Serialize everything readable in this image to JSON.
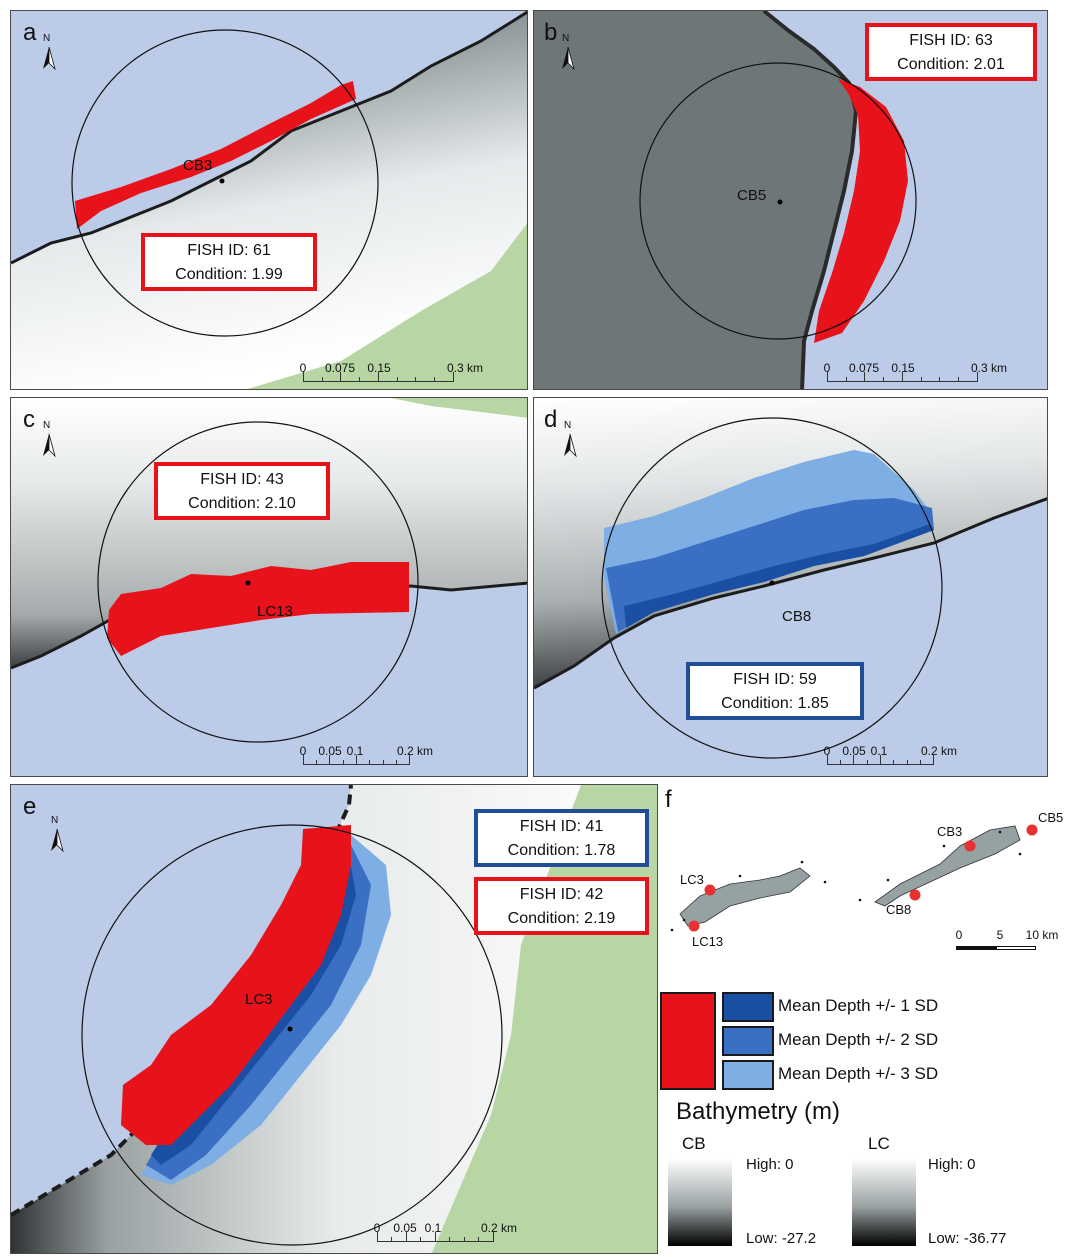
{
  "panels": {
    "a": {
      "letter": "a",
      "north": "N",
      "site": "CB3",
      "box": {
        "fish_id": "FISH ID: 61",
        "condition": "Condition: 1.99",
        "color": "#e8121b"
      },
      "scale": [
        "0",
        "0.075",
        "0.15",
        "0.3 km"
      ]
    },
    "b": {
      "letter": "b",
      "north": "N",
      "site": "CB5",
      "box": {
        "fish_id": "FISH ID: 63",
        "condition": "Condition: 2.01",
        "color": "#e8121b"
      },
      "scale": [
        "0",
        "0.075",
        "0.15",
        "0.3 km"
      ]
    },
    "c": {
      "letter": "c",
      "north": "N",
      "site": "LC13",
      "box": {
        "fish_id": "FISH ID: 43",
        "condition": "Condition: 2.10",
        "color": "#e8121b"
      },
      "scale": [
        "0",
        "0.05",
        "0.1",
        "0.2 km"
      ]
    },
    "d": {
      "letter": "d",
      "north": "N",
      "site": "CB8",
      "box": {
        "fish_id": "FISH ID: 59",
        "condition": "Condition: 1.85",
        "color": "#1f4e96"
      },
      "scale": [
        "0",
        "0.05",
        "0.1",
        "0.2 km"
      ]
    },
    "e": {
      "letter": "e",
      "north": "N",
      "site": "LC3",
      "box_blue": {
        "fish_id": "FISH ID: 41",
        "condition": "Condition: 1.78",
        "color": "#1f4e96"
      },
      "box_red": {
        "fish_id": "FISH ID: 42",
        "condition": "Condition: 2.19",
        "color": "#e8121b"
      },
      "scale": [
        "0",
        "0.05",
        "0.1",
        "0.2 km"
      ]
    },
    "f": {
      "letter": "f",
      "sites": [
        "LC3",
        "LC13",
        "CB3",
        "CB5",
        "CB8"
      ],
      "scale": [
        "0",
        "5",
        "10 km"
      ]
    }
  },
  "legend": {
    "items": [
      {
        "label": "Mean Depth +/- 1 SD",
        "color": "#1a4fa3"
      },
      {
        "label": "Mean Depth +/- 2 SD",
        "color": "#3a6fc4"
      },
      {
        "label": "Mean Depth +/- 3 SD",
        "color": "#7eaee3"
      }
    ],
    "high_fish_color": "#e8121b",
    "bathymetry_title": "Bathymetry (m)",
    "cb": {
      "name": "CB",
      "high": "High: 0",
      "low": "Low: -27.2"
    },
    "lc": {
      "name": "LC",
      "high": "High: 0",
      "low": "Low: -36.77"
    }
  },
  "colors": {
    "water": "#bccbe8",
    "land": "#b7d6a3",
    "highlight": "#e8121b"
  }
}
